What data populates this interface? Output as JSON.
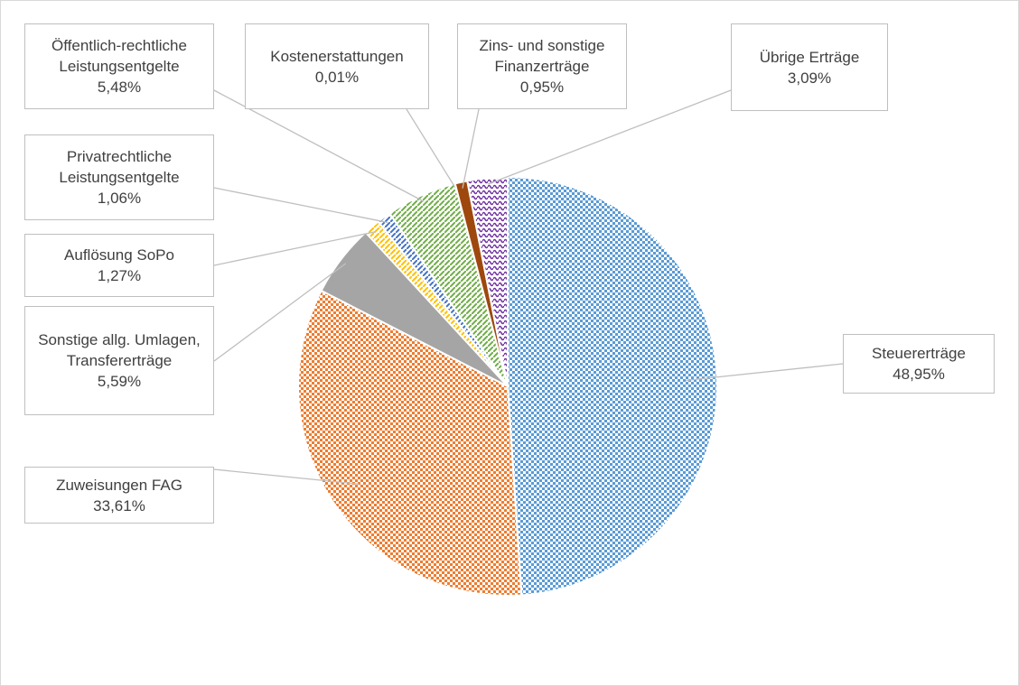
{
  "chart_data": {
    "type": "pie",
    "categories": [
      "Steuererträge",
      "Zuweisungen FAG",
      "Sonstige allg. Umlagen, Transfererträge",
      "Auflösung SoPo",
      "Privatrechtliche Leistungsentgelte",
      "Öffentlich-rechtliche Leistungsentgelte",
      "Kostenerstattungen",
      "Zins- und sonstige Finanzerträge",
      "Übrige Erträge"
    ],
    "values": [
      48.95,
      33.61,
      5.59,
      1.27,
      1.06,
      5.48,
      0.01,
      0.95,
      3.09
    ],
    "value_labels": [
      "48,95%",
      "33,61%",
      "5,59%",
      "1,27%",
      "1,06%",
      "5,48%",
      "0,01%",
      "0,95%",
      "3,09%"
    ],
    "colors": [
      "#5b9bd5",
      "#ed7d31",
      "#a5a5a5",
      "#ffc000",
      "#4472c4",
      "#70ad47",
      "#264478",
      "#9e480e",
      "#7030a0"
    ]
  }
}
